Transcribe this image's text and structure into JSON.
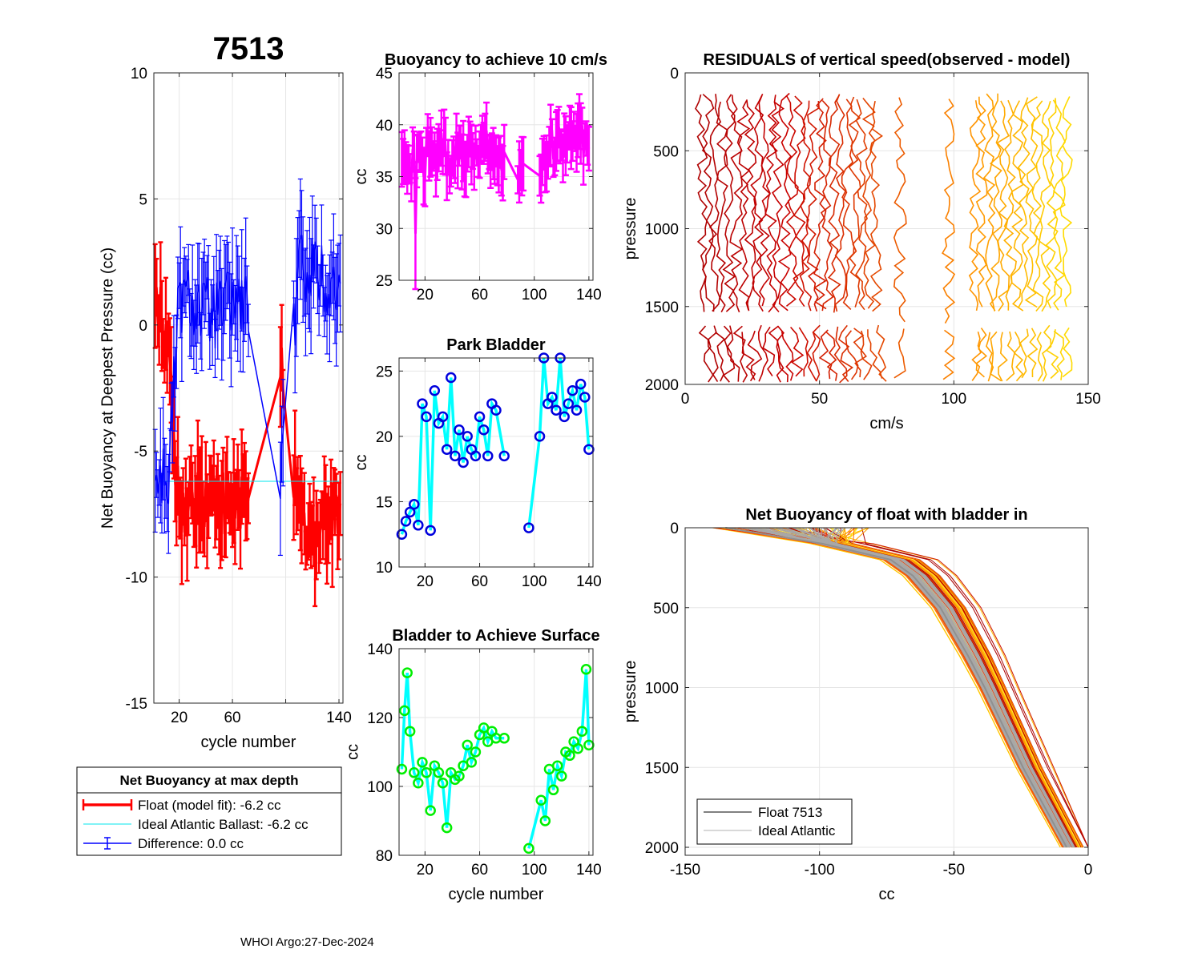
{
  "figure": {
    "float_id": "7513",
    "footer": "WHOI Argo:27-Dec-2024"
  },
  "colors": {
    "float": "#ff0000",
    "ideal": "#00e5ee",
    "difference": "#0000ff",
    "buoyancy10": "#ff00ff",
    "park_marker": "#0000dd",
    "park_line": "#00ffff",
    "surface_marker": "#00ee00",
    "surface_line": "#00ffff",
    "grid": "#e6e6e6"
  },
  "chart_data": [
    {
      "id": "net_buoyancy",
      "type": "line",
      "title": "7513",
      "xlabel": "cycle number",
      "ylabel": "Net Buoyancy at Deepest Pressure (cc)",
      "xlim": [
        1,
        143
      ],
      "ylim": [
        -15,
        10
      ],
      "xticks": [
        20,
        60,
        100,
        140
      ],
      "xtick_labels": [
        "20",
        "60",
        "",
        "140"
      ],
      "yticks": [
        -15,
        -10,
        -5,
        0,
        5,
        10
      ],
      "ytick_labels": [
        "-15",
        "-10",
        "-5",
        "0",
        "5",
        "10"
      ],
      "series": [
        {
          "name": "Float (model fit)",
          "style": "errorbar",
          "x": [
            5,
            12,
            20,
            30,
            40,
            50,
            60,
            70,
            97,
            110,
            120,
            130,
            140
          ],
          "y": [
            0.5,
            -1.0,
            -7.5,
            -7.0,
            -7.2,
            -6.8,
            -7.5,
            -7.0,
            -1.0,
            -8.0,
            -8.5,
            -7.5,
            -7.6
          ]
        },
        {
          "name": "Ideal Atlantic Ballast",
          "style": "line",
          "x": [
            5,
            20,
            40,
            60,
            80,
            100,
            120,
            140
          ],
          "y": [
            -6.2,
            -6.2,
            -6.2,
            -6.2,
            -6.2,
            -6.2,
            -6.2,
            -6.2
          ]
        },
        {
          "name": "Difference",
          "style": "errorbar",
          "x": [
            5,
            12,
            20,
            30,
            40,
            50,
            60,
            70,
            97,
            110,
            120,
            130,
            140
          ],
          "y": [
            -6.0,
            -6.0,
            1.0,
            1.0,
            0.5,
            0.5,
            1.0,
            0.8,
            -6.0,
            2.0,
            2.5,
            1.5,
            1.5
          ]
        }
      ],
      "legend": {
        "title": "Net Buoyancy at max depth",
        "entries": [
          "Float (model fit):  -6.2 cc",
          "Ideal Atlantic Ballast:  -6.2 cc",
          "Difference:   0.0 cc"
        ]
      }
    },
    {
      "id": "buoyancy_10cms",
      "type": "line",
      "title": "Buoyancy to achieve 10 cm/s",
      "xlabel": "",
      "ylabel": "cc",
      "xlim": [
        1,
        143
      ],
      "ylim": [
        25,
        45
      ],
      "xticks": [
        20,
        60,
        100,
        140
      ],
      "xtick_labels": [
        "20",
        "60",
        "100",
        "140"
      ],
      "yticks": [
        25,
        30,
        35,
        40,
        45
      ],
      "ytick_labels": [
        "25",
        "30",
        "35",
        "40",
        "45"
      ],
      "series": [
        {
          "name": "buoyancy",
          "style": "errorbar",
          "x": [
            5,
            10,
            15,
            20,
            25,
            30,
            35,
            40,
            45,
            50,
            55,
            60,
            65,
            70,
            75,
            90,
            105,
            110,
            115,
            120,
            125,
            130,
            135,
            140
          ],
          "y": [
            35.5,
            37,
            36,
            38,
            37,
            38,
            36,
            37.5,
            37,
            37.5,
            37,
            38,
            37,
            37.5,
            36,
            36,
            36.5,
            38,
            39,
            38,
            38.5,
            39,
            38,
            37.5
          ]
        }
      ]
    },
    {
      "id": "park_bladder",
      "type": "line",
      "title": "Park Bladder",
      "xlabel": "",
      "ylabel": "cc",
      "xlim": [
        1,
        143
      ],
      "ylim": [
        10,
        26
      ],
      "xticks": [
        20,
        60,
        100,
        140
      ],
      "xtick_labels": [
        "20",
        "60",
        "100",
        "140"
      ],
      "yticks": [
        10,
        15,
        20,
        25
      ],
      "ytick_labels": [
        "10",
        "15",
        "20",
        "25"
      ],
      "series": [
        {
          "name": "park bladder",
          "style": "line+marker",
          "x": [
            3,
            6,
            9,
            12,
            15,
            18,
            21,
            24,
            27,
            30,
            33,
            36,
            39,
            42,
            45,
            48,
            51,
            54,
            57,
            60,
            63,
            66,
            69,
            72,
            78,
            96,
            104,
            107,
            110,
            113,
            116,
            119,
            122,
            125,
            128,
            131,
            134,
            137,
            140
          ],
          "y": [
            12.5,
            13.5,
            14.2,
            14.8,
            13.2,
            22.5,
            21.5,
            12.8,
            23.5,
            21.0,
            21.5,
            19.0,
            24.5,
            18.5,
            20.5,
            18.0,
            20.0,
            19.0,
            18.5,
            21.5,
            20.5,
            18.5,
            22.5,
            22.0,
            18.5,
            13.0,
            20.0,
            26.0,
            22.5,
            23.0,
            22.0,
            26.0,
            21.5,
            22.5,
            23.5,
            22.0,
            24.0,
            23.0,
            19.0
          ]
        }
      ]
    },
    {
      "id": "bladder_surface",
      "type": "line",
      "title": "Bladder to Achieve Surface",
      "xlabel": "cycle number",
      "ylabel": "cc",
      "xlim": [
        1,
        143
      ],
      "ylim": [
        80,
        140
      ],
      "xticks": [
        20,
        60,
        100,
        140
      ],
      "xtick_labels": [
        "20",
        "60",
        "100",
        "140"
      ],
      "yticks": [
        80,
        100,
        120,
        140
      ],
      "ytick_labels": [
        "80",
        "100",
        "120",
        "140"
      ],
      "series": [
        {
          "name": "surface bladder",
          "style": "line+marker",
          "x": [
            3,
            5,
            7,
            9,
            12,
            15,
            18,
            21,
            24,
            27,
            30,
            33,
            36,
            39,
            42,
            45,
            48,
            51,
            54,
            57,
            60,
            63,
            66,
            69,
            72,
            78,
            96,
            105,
            108,
            111,
            114,
            117,
            120,
            123,
            126,
            129,
            132,
            135,
            138,
            140
          ],
          "y": [
            105,
            122,
            133,
            116,
            104,
            101,
            107,
            104,
            93,
            106,
            104,
            101,
            88,
            104,
            102,
            103,
            106,
            112,
            107,
            110,
            115,
            117,
            113,
            116,
            114,
            114,
            82,
            96,
            90,
            105,
            99,
            106,
            103,
            110,
            109,
            113,
            111,
            116,
            134,
            112
          ]
        }
      ]
    },
    {
      "id": "residuals",
      "type": "line",
      "title": "RESIDUALS of vertical speed(observed - model)",
      "xlabel": "cm/s",
      "ylabel": "pressure",
      "xlim": [
        0,
        150
      ],
      "ylim": [
        2000,
        0
      ],
      "y_reversed": true,
      "xticks": [
        0,
        50,
        100,
        150
      ],
      "xtick_labels": [
        "0",
        "50",
        "100",
        "150"
      ],
      "yticks": [
        0,
        500,
        1000,
        1500,
        2000
      ],
      "ytick_labels": [
        "0",
        "500",
        "1000",
        "1500",
        "2000"
      ],
      "series": [
        {
          "name": "profiles (one per cycle, offset by cycle)",
          "style": "colormap-lines",
          "profile_offsets_cms": [
            6,
            12,
            18,
            24,
            30,
            36,
            42,
            48,
            54,
            60,
            66,
            72,
            80,
            98,
            110,
            116,
            122,
            128,
            134,
            140
          ],
          "pressure_range": [
            150,
            1980
          ]
        }
      ]
    },
    {
      "id": "net_buoyancy_profile",
      "type": "line",
      "title": "Net Buoyancy of float with bladder in",
      "xlabel": "cc",
      "ylabel": "pressure",
      "xlim": [
        -150,
        0
      ],
      "ylim": [
        2050,
        0
      ],
      "y_reversed": true,
      "xticks": [
        -150,
        -100,
        -50,
        0
      ],
      "xtick_labels": [
        "-150",
        "-100",
        "-50",
        "0"
      ],
      "yticks": [
        0,
        500,
        1000,
        1500,
        2000
      ],
      "ytick_labels": [
        "0",
        "500",
        "1000",
        "1500",
        "2000"
      ],
      "series": [
        {
          "name": "Float 7513",
          "style": "lines",
          "pressure": [
            0,
            100,
            200,
            300,
            500,
            800,
            1000,
            1500,
            2000
          ],
          "cc": [
            -135,
            -95,
            -70,
            -62,
            -52,
            -42,
            -36,
            -22,
            -6
          ]
        },
        {
          "name": "Ideal Atlantic",
          "style": "line",
          "pressure": [
            0,
            100,
            200,
            300,
            500,
            800,
            1000,
            1500,
            2000
          ],
          "cc": [
            -140,
            -100,
            -75,
            -66,
            -56,
            -46,
            -40,
            -26,
            -10
          ]
        }
      ],
      "legend": {
        "entries": [
          "Float 7513",
          "Ideal Atlantic"
        ]
      }
    }
  ]
}
